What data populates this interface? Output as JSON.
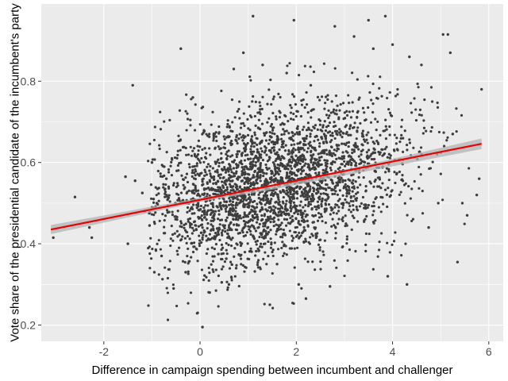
{
  "chart_data": {
    "type": "scatter",
    "title": "",
    "xlabel": "Difference in campaign spending between incumbent and challenger",
    "ylabel": "Vote share of the presidential candidate of the incumbent's party",
    "xlim": [
      -3.3,
      6.3
    ],
    "ylim": [
      0.16,
      0.99
    ],
    "x_ticks": [
      -2,
      0,
      2,
      4,
      6
    ],
    "x_tick_labels": [
      "-2",
      "0",
      "2",
      "4",
      "6"
    ],
    "y_ticks": [
      0.2,
      0.4,
      0.6,
      0.8
    ],
    "y_tick_labels": [
      "0.2",
      "0.4",
      "0.6",
      "0.8"
    ],
    "grid": true,
    "legend": "none",
    "colors": {
      "panel": "#ebebeb",
      "grid_major": "#ffffff",
      "points": "#3d3d3d",
      "fit_line": "#e60000",
      "ribbon": "#b3b3b3"
    },
    "fit_line": {
      "x": [
        -3.1,
        5.85
      ],
      "y": [
        0.435,
        0.646
      ]
    },
    "confidence_band": {
      "x": [
        -3.1,
        0,
        1.4,
        5.85
      ],
      "lower": [
        0.424,
        0.503,
        0.531,
        0.633
      ],
      "upper": [
        0.446,
        0.513,
        0.539,
        0.659
      ]
    },
    "points": [
      {
        "x": -3.05,
        "y": 0.415
      },
      {
        "x": -2.6,
        "y": 0.515
      },
      {
        "x": -2.3,
        "y": 0.44
      },
      {
        "x": -2.25,
        "y": 0.415
      },
      {
        "x": -1.55,
        "y": 0.565
      },
      {
        "x": -1.5,
        "y": 0.4
      },
      {
        "x": -1.4,
        "y": 0.79
      },
      {
        "x": -1.35,
        "y": 0.555
      },
      {
        "x": -1.2,
        "y": 0.525
      },
      {
        "x": -1.15,
        "y": 0.48
      },
      {
        "x": -1.05,
        "y": 0.445
      },
      {
        "x": -1.0,
        "y": 0.6
      },
      {
        "x": -0.95,
        "y": 0.33
      },
      {
        "x": -0.9,
        "y": 0.5
      },
      {
        "x": -0.8,
        "y": 0.37
      },
      {
        "x": -0.7,
        "y": 0.56
      },
      {
        "x": -0.55,
        "y": 0.29
      },
      {
        "x": -0.4,
        "y": 0.88
      },
      {
        "x": -0.3,
        "y": 0.33
      },
      {
        "x": -0.15,
        "y": 0.76
      },
      {
        "x": -0.05,
        "y": 0.23
      },
      {
        "x": 0.05,
        "y": 0.195
      },
      {
        "x": 0.1,
        "y": 0.635
      },
      {
        "x": 0.2,
        "y": 0.28
      },
      {
        "x": 0.3,
        "y": 0.67
      },
      {
        "x": 0.45,
        "y": 0.305
      },
      {
        "x": 0.6,
        "y": 0.3
      },
      {
        "x": 0.7,
        "y": 0.83
      },
      {
        "x": 0.75,
        "y": 0.34
      },
      {
        "x": 0.9,
        "y": 0.87
      },
      {
        "x": 1.1,
        "y": 0.96
      },
      {
        "x": 1.3,
        "y": 0.84
      },
      {
        "x": 1.45,
        "y": 0.25
      },
      {
        "x": 1.6,
        "y": 0.35
      },
      {
        "x": 1.8,
        "y": 0.82
      },
      {
        "x": 1.95,
        "y": 0.95
      },
      {
        "x": 2.05,
        "y": 0.3
      },
      {
        "x": 2.2,
        "y": 0.265
      },
      {
        "x": 2.3,
        "y": 0.79
      },
      {
        "x": 2.7,
        "y": 0.295
      },
      {
        "x": 2.8,
        "y": 0.935
      },
      {
        "x": 3.2,
        "y": 0.91
      },
      {
        "x": 3.5,
        "y": 0.95
      },
      {
        "x": 3.6,
        "y": 0.88
      },
      {
        "x": 3.85,
        "y": 0.96
      },
      {
        "x": 3.9,
        "y": 0.32
      },
      {
        "x": 4.0,
        "y": 0.89
      },
      {
        "x": 4.3,
        "y": 0.3
      },
      {
        "x": 4.35,
        "y": 0.86
      },
      {
        "x": 4.6,
        "y": 0.84
      },
      {
        "x": 4.75,
        "y": 0.44
      },
      {
        "x": 4.95,
        "y": 0.5
      },
      {
        "x": 5.05,
        "y": 0.915
      },
      {
        "x": 5.15,
        "y": 0.915
      },
      {
        "x": 5.2,
        "y": 0.87
      },
      {
        "x": 5.35,
        "y": 0.355
      },
      {
        "x": 5.45,
        "y": 0.5
      },
      {
        "x": 5.55,
        "y": 0.47
      },
      {
        "x": 5.75,
        "y": 0.52
      },
      {
        "x": 5.85,
        "y": 0.78
      },
      {
        "x": 5.8,
        "y": 0.56
      },
      {
        "x": 5.25,
        "y": 0.67
      }
    ],
    "note": "Dense cloud of roughly 3000 observations concentrated between x=0 and x=5, y=0.3 to 0.8; only distinguishable outliers are listed individually."
  }
}
